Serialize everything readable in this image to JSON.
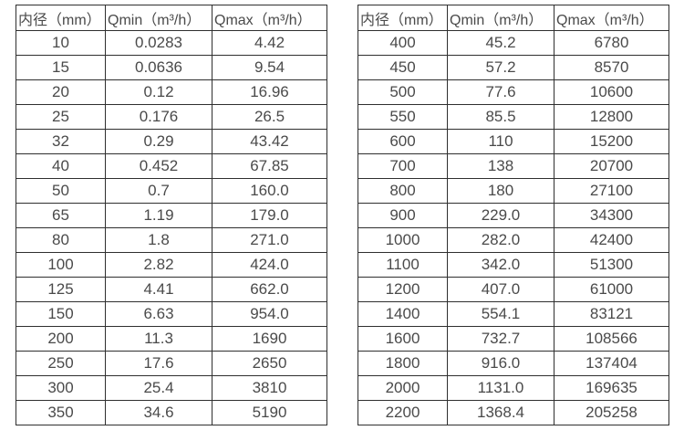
{
  "colors": {
    "background": "#ffffff",
    "border": "#2f2f2f",
    "text": "#4a4a4a"
  },
  "chart_data": [
    {
      "type": "table",
      "title": "",
      "headers": [
        "内径（mm）",
        "Qmin（m³/h）",
        "Qmax（m³/h）"
      ],
      "columns": [
        "内径（mm）",
        "Qmin（m³/h）",
        "Qmax（m³/h）"
      ],
      "rows": [
        [
          "10",
          "0.0283",
          "4.42"
        ],
        [
          "15",
          "0.0636",
          "9.54"
        ],
        [
          "20",
          "0.12",
          "16.96"
        ],
        [
          "25",
          "0.176",
          "26.5"
        ],
        [
          "32",
          "0.29",
          "43.42"
        ],
        [
          "40",
          "0.452",
          "67.85"
        ],
        [
          "50",
          "0.7",
          "160.0"
        ],
        [
          "65",
          "1.19",
          "179.0"
        ],
        [
          "80",
          "1.8",
          "271.0"
        ],
        [
          "100",
          "2.82",
          "424.0"
        ],
        [
          "125",
          "4.41",
          "662.0"
        ],
        [
          "150",
          "6.63",
          "954.0"
        ],
        [
          "200",
          "11.3",
          "1690"
        ],
        [
          "250",
          "17.6",
          "2650"
        ],
        [
          "300",
          "25.4",
          "3810"
        ],
        [
          "350",
          "34.6",
          "5190"
        ]
      ]
    },
    {
      "type": "table",
      "title": "",
      "headers": [
        "内径（mm）",
        "Qmin（m³/h）",
        "Qmax（m³/h）"
      ],
      "columns": [
        "内径（mm）",
        "Qmin（m³/h）",
        "Qmax（m³/h）"
      ],
      "rows": [
        [
          "400",
          "45.2",
          "6780"
        ],
        [
          "450",
          "57.2",
          "8570"
        ],
        [
          "500",
          "77.6",
          "10600"
        ],
        [
          "550",
          "85.5",
          "12800"
        ],
        [
          "600",
          "110",
          "15200"
        ],
        [
          "700",
          "138",
          "20700"
        ],
        [
          "800",
          "180",
          "27100"
        ],
        [
          "900",
          "229.0",
          "34300"
        ],
        [
          "1000",
          "282.0",
          "42400"
        ],
        [
          "1100",
          "342.0",
          "51300"
        ],
        [
          "1200",
          "407.0",
          "61000"
        ],
        [
          "1400",
          "554.1",
          "83121"
        ],
        [
          "1600",
          "732.7",
          "108566"
        ],
        [
          "1800",
          "916.0",
          "137404"
        ],
        [
          "2000",
          "1131.0",
          "169635"
        ],
        [
          "2200",
          "1368.4",
          "205258"
        ]
      ]
    }
  ]
}
